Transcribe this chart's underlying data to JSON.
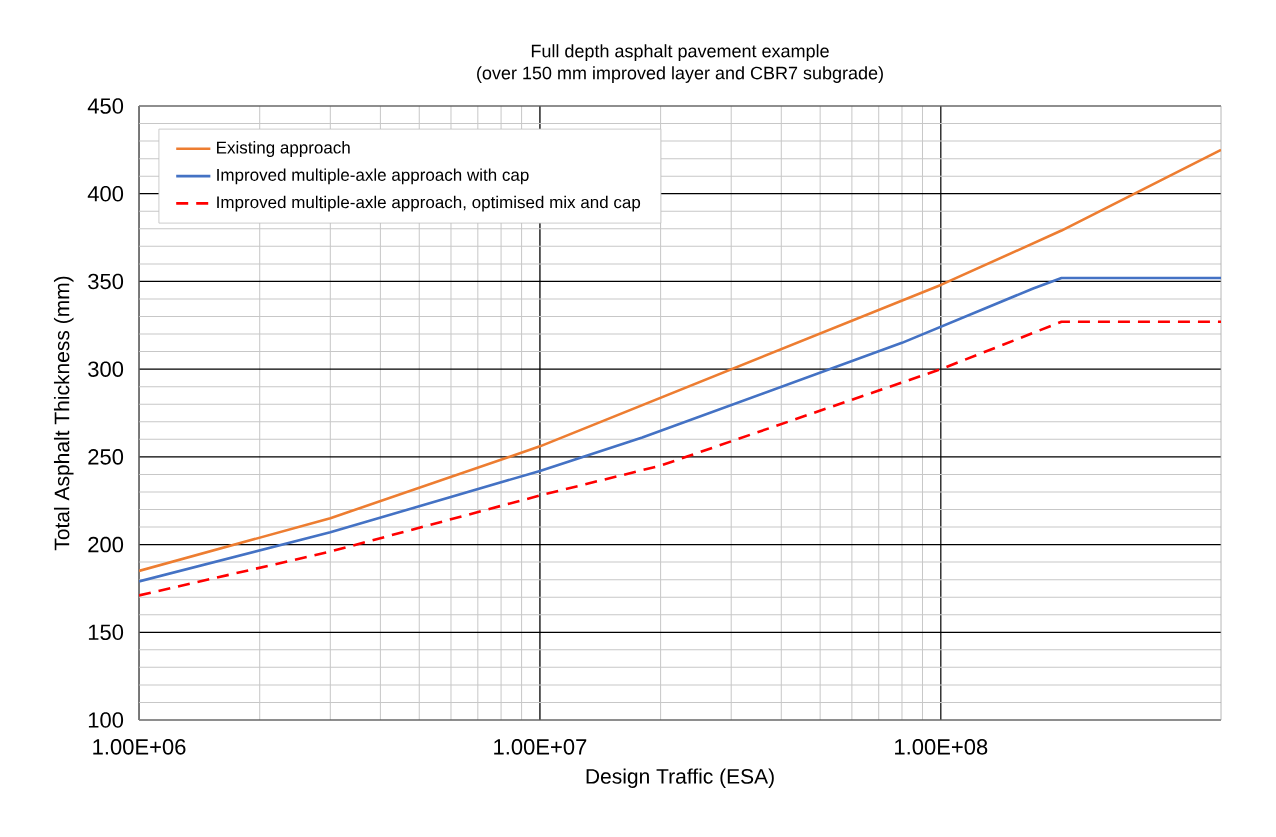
{
  "chart_data": {
    "type": "line",
    "title": "Full depth asphalt pavement example\n(over 150 mm improved layer and CBR7 subgrade)",
    "xlabel": "Design Traffic (ESA)",
    "ylabel": "Total Asphalt Thickness (mm)",
    "log": "x",
    "xlim": [
      1000000,
      500000000
    ],
    "ylim": [
      100,
      450
    ],
    "xticks": [
      {
        "value": 1000000,
        "label": "1.00E+06"
      },
      {
        "value": 10000000,
        "label": "1.00E+07"
      },
      {
        "value": 100000000,
        "label": "1.00E+08"
      }
    ],
    "yticks": [
      100,
      150,
      200,
      250,
      300,
      350,
      400,
      450
    ],
    "grid": true,
    "legend": "top left",
    "marker": "none",
    "series": [
      {
        "name": "Existing approach",
        "color": "#ed7d31",
        "line_style": "solid",
        "x": [
          1000000,
          3000000,
          10000000,
          100000000,
          200000000,
          500000000
        ],
        "values": [
          185,
          215,
          256,
          348,
          379,
          425
        ]
      },
      {
        "name": "Improved multiple-axle approach with cap",
        "color": "#4472c4",
        "line_style": "solid",
        "x": [
          1000000,
          3000000,
          10000000,
          18000000,
          80000000,
          170000000,
          200000000,
          500000000
        ],
        "values": [
          179,
          207,
          242,
          261,
          315,
          346,
          352,
          352
        ]
      },
      {
        "name": "Improved multiple-axle approach, optimised mix and cap",
        "color": "#ff0000",
        "line_style": "dashed",
        "x": [
          1000000,
          3000000,
          10000000,
          20000000,
          100000000,
          200000000,
          500000000
        ],
        "values": [
          171,
          196,
          228,
          245,
          300,
          327,
          327
        ]
      }
    ]
  }
}
